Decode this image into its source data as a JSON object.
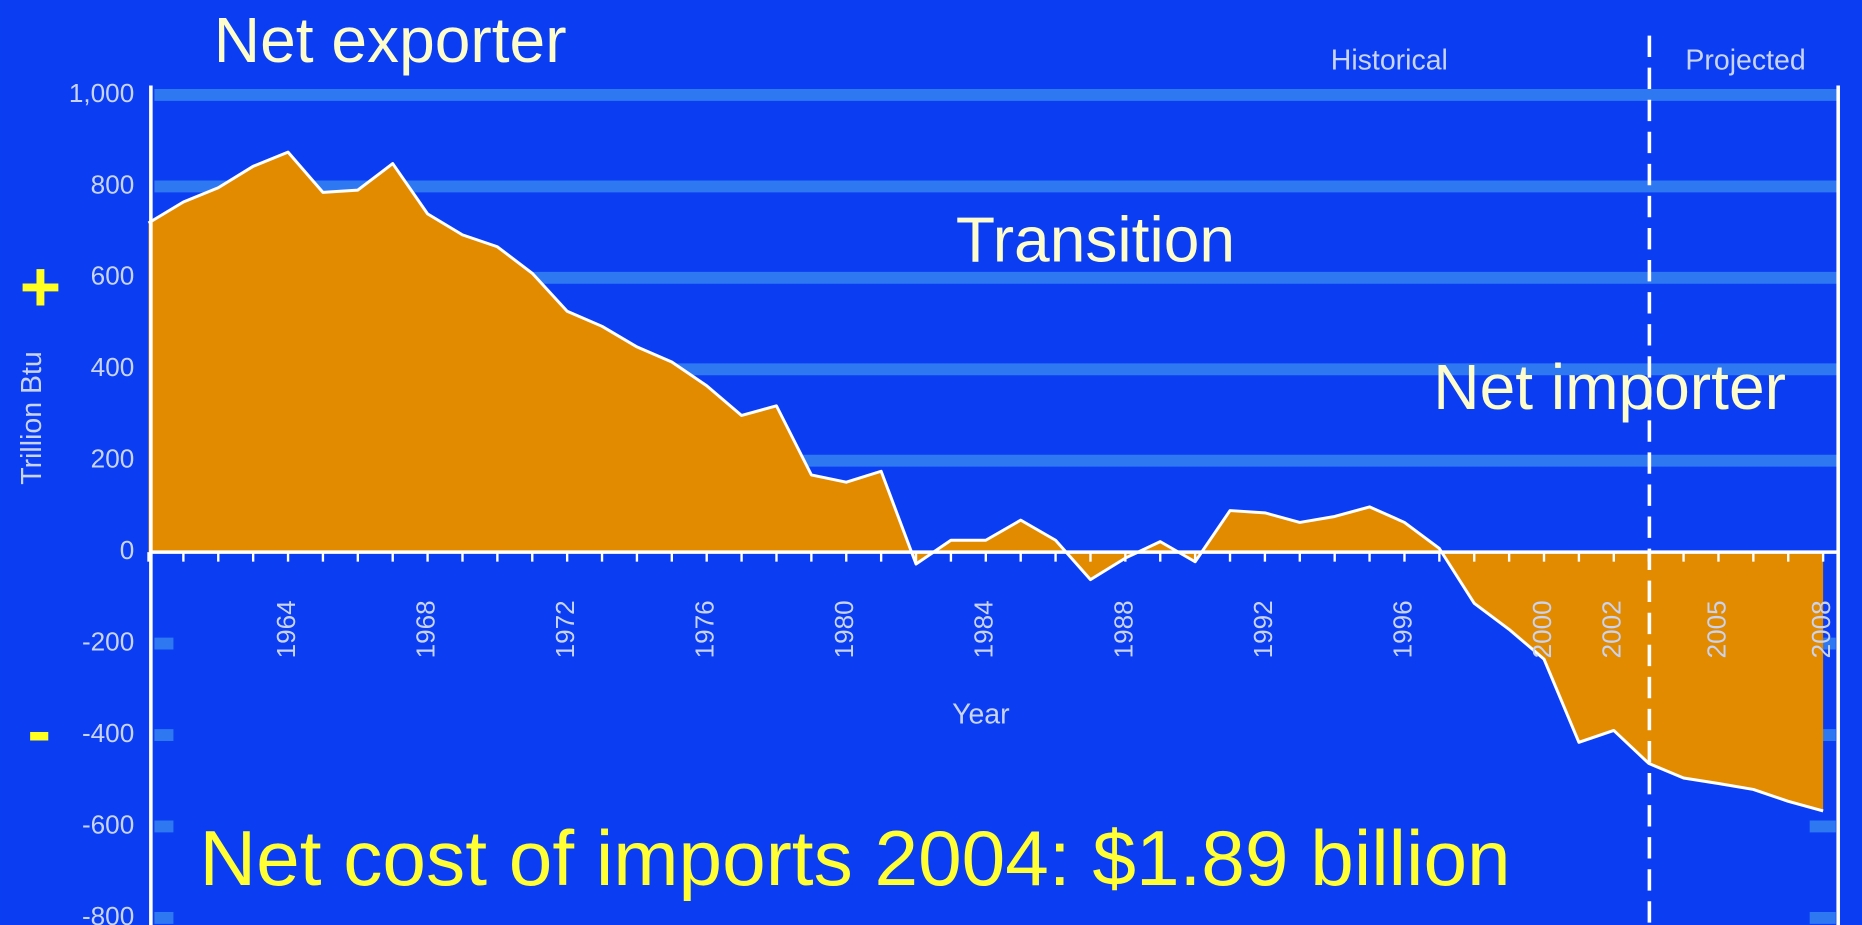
{
  "chart_data": {
    "type": "area",
    "x": [
      1960,
      1961,
      1962,
      1963,
      1964,
      1965,
      1966,
      1967,
      1968,
      1969,
      1970,
      1971,
      1972,
      1973,
      1974,
      1975,
      1976,
      1977,
      1978,
      1979,
      1980,
      1981,
      1982,
      1983,
      1984,
      1985,
      1986,
      1987,
      1988,
      1989,
      1990,
      1991,
      1992,
      1993,
      1994,
      1995,
      1996,
      1997,
      1998,
      1999,
      2000,
      2001,
      2002,
      2003,
      2004,
      2005,
      2006,
      2007,
      2008
    ],
    "values": [
      720,
      766,
      797,
      844,
      875,
      787,
      792,
      850,
      740,
      694,
      668,
      610,
      527,
      494,
      449,
      416,
      364,
      299,
      320,
      169,
      153,
      177,
      -26,
      26,
      26,
      70,
      26,
      -60,
      -13,
      23,
      -21,
      91,
      86,
      65,
      78,
      99,
      65,
      8,
      -112,
      -169,
      -234,
      -416,
      -390,
      -462,
      -494,
      -506,
      -519,
      -545,
      -566
    ],
    "color": "#e38b00",
    "xlim": [
      1960,
      2008.5
    ],
    "xticks": [
      1964,
      1968,
      1972,
      1976,
      1980,
      1984,
      1988,
      1992,
      1996,
      2000,
      2002,
      2005,
      2008
    ],
    "ylim": [
      -800,
      1000
    ],
    "yticks": [
      {
        "value": 1000,
        "label": "1,000"
      },
      800,
      600,
      400,
      200,
      0,
      -200,
      -400,
      -600,
      -800
    ],
    "grid": true,
    "x_label": "Year",
    "y_label": "Trillion Btu",
    "annotations": [
      "Net exporter",
      "Transition",
      "Net importer",
      "Net cost of imports 2004:  $1.89 billion",
      "Historical",
      "Projected",
      "+",
      "-"
    ]
  }
}
